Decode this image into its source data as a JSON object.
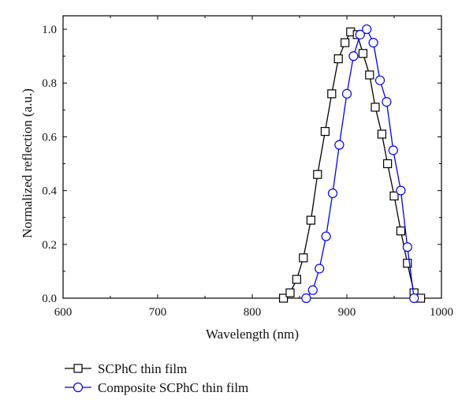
{
  "chart_data": {
    "type": "line",
    "title": "",
    "xlabel": "Wavelength (nm)",
    "ylabel": "Normalized reflection (a.u.)",
    "xlim": [
      600,
      1000
    ],
    "ylim": [
      0,
      1.05
    ],
    "xticks": [
      "600",
      "700",
      "800",
      "900",
      "1000"
    ],
    "yticks": [
      "0.0",
      "0.2",
      "0.4",
      "0.6",
      "0.8",
      "1.0"
    ],
    "grid": false,
    "legend_position": "bottom-left, below plot",
    "series": [
      {
        "name": "SCPhC thin film",
        "color": "#000000",
        "marker": "square",
        "x": [
          833,
          840,
          847,
          854,
          862,
          869,
          877,
          884,
          891,
          898,
          904,
          911,
          917,
          924,
          930,
          937,
          943,
          950,
          957,
          964,
          971,
          978
        ],
        "y": [
          0.0,
          0.02,
          0.07,
          0.15,
          0.29,
          0.46,
          0.62,
          0.76,
          0.89,
          0.95,
          0.99,
          0.98,
          0.91,
          0.83,
          0.71,
          0.61,
          0.5,
          0.38,
          0.25,
          0.13,
          0.02,
          0.0
        ]
      },
      {
        "name": "Composite SCPhC thin film",
        "color": "#0000ff",
        "marker": "circle",
        "x": [
          857,
          864,
          871,
          878,
          885,
          892,
          900,
          907,
          914,
          921,
          928,
          935,
          942,
          949,
          957,
          964,
          971
        ],
        "y": [
          0.0,
          0.03,
          0.11,
          0.23,
          0.39,
          0.57,
          0.76,
          0.9,
          0.98,
          1.0,
          0.95,
          0.81,
          0.73,
          0.55,
          0.4,
          0.19,
          0.0
        ]
      }
    ]
  }
}
